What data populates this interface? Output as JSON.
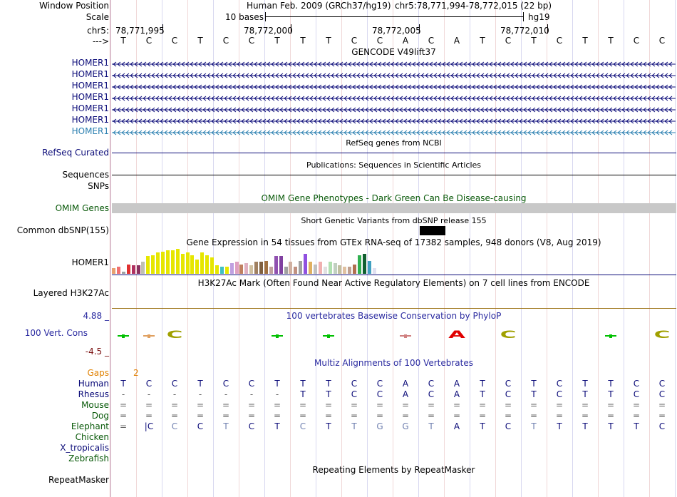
{
  "header": {
    "window_position_label": "Window Position",
    "assembly": "Human Feb. 2009 (GRCh37/hg19)",
    "position": "chr5:78,771,994-78,772,015 (22 bp)",
    "scale_label": "Scale",
    "scale_text": "10 bases",
    "scale_db": "hg19",
    "chrom_label": "chr5:",
    "ticks": [
      "78,771,995",
      "78,772,000",
      "78,772,005",
      "78,772,010"
    ],
    "strand_label": "--->"
  },
  "sequence": [
    "T",
    "C",
    "C",
    "T",
    "C",
    "C",
    "T",
    "T",
    "T",
    "C",
    "C",
    "A",
    "C",
    "A",
    "T",
    "C",
    "T",
    "C",
    "T",
    "T",
    "C",
    "C"
  ],
  "gencode": {
    "title": "GENCODE V49lift37",
    "genes": [
      "HOMER1",
      "HOMER1",
      "HOMER1",
      "HOMER1",
      "HOMER1",
      "HOMER1",
      "HOMER1"
    ],
    "gene_colors": [
      "#0a0a78",
      "#0a0a78",
      "#0a0a78",
      "#0a0a78",
      "#0a0a78",
      "#0a0a78",
      "#2a7fb0"
    ]
  },
  "refseq": {
    "title": "RefSeq genes from NCBI",
    "label": "RefSeq Curated"
  },
  "publications": {
    "title": "Publications: Sequences in Scientific Articles",
    "label": "Sequences"
  },
  "snps_label": "SNPs",
  "omim": {
    "title": "OMIM Gene Phenotypes - Dark Green Can Be Disease-causing",
    "label": "OMIM Genes"
  },
  "dbsnp": {
    "title": "Short Genetic Variants from dbSNP release 155",
    "label": "Common dbSNP(155)"
  },
  "gtex": {
    "title": "Gene Expression in 54 tissues from GTEx RNA-seq of 17382 samples, 948 donors (V8, Aug 2019)",
    "label": "HOMER1",
    "bars": [
      {
        "v": 0.25,
        "c": "#e8a070"
      },
      {
        "v": 0.3,
        "c": "#f07070"
      },
      {
        "v": 0.1,
        "c": "#a0a0a0"
      },
      {
        "v": 0.4,
        "c": "#e03030"
      },
      {
        "v": 0.35,
        "c": "#b03060"
      },
      {
        "v": 0.35,
        "c": "#8a3060"
      },
      {
        "v": 0.5,
        "c": "#c0c0b0"
      },
      {
        "v": 0.75,
        "c": "#e6e600"
      },
      {
        "v": 0.8,
        "c": "#e6e600"
      },
      {
        "v": 0.9,
        "c": "#e6e600"
      },
      {
        "v": 0.95,
        "c": "#e6e600"
      },
      {
        "v": 1.0,
        "c": "#e6e600"
      },
      {
        "v": 1.0,
        "c": "#e6e600"
      },
      {
        "v": 1.05,
        "c": "#e6e600"
      },
      {
        "v": 0.85,
        "c": "#e6e600"
      },
      {
        "v": 0.9,
        "c": "#e6e600"
      },
      {
        "v": 0.8,
        "c": "#e6e600"
      },
      {
        "v": 0.6,
        "c": "#e6e600"
      },
      {
        "v": 0.9,
        "c": "#e6e600"
      },
      {
        "v": 0.8,
        "c": "#e6e600"
      },
      {
        "v": 0.7,
        "c": "#e6e600"
      },
      {
        "v": 0.35,
        "c": "#e6e600"
      },
      {
        "v": 0.3,
        "c": "#40c0c0"
      },
      {
        "v": 0.3,
        "c": "#e6e600"
      },
      {
        "v": 0.45,
        "c": "#c0a0e0"
      },
      {
        "v": 0.5,
        "c": "#e0a0c0"
      },
      {
        "v": 0.4,
        "c": "#c08060"
      },
      {
        "v": 0.45,
        "c": "#e0b0c0"
      },
      {
        "v": 0.35,
        "c": "#d0c0a0"
      },
      {
        "v": 0.5,
        "c": "#a08060"
      },
      {
        "v": 0.5,
        "c": "#806040"
      },
      {
        "v": 0.55,
        "c": "#a07040"
      },
      {
        "v": 0.3,
        "c": "#c0a0a0"
      },
      {
        "v": 0.75,
        "c": "#9050b0"
      },
      {
        "v": 0.75,
        "c": "#8040a0"
      },
      {
        "v": 0.3,
        "c": "#a0a0a0"
      },
      {
        "v": 0.5,
        "c": "#d0b0a0"
      },
      {
        "v": 0.3,
        "c": "#c09080"
      },
      {
        "v": 0.55,
        "c": "#a0a0a0"
      },
      {
        "v": 0.85,
        "c": "#9050e0"
      },
      {
        "v": 0.5,
        "c": "#e0b060"
      },
      {
        "v": 0.4,
        "c": "#c0c0c0"
      },
      {
        "v": 0.5,
        "c": "#f0b0b0"
      },
      {
        "v": 0.3,
        "c": "#e0e0e0"
      },
      {
        "v": 0.5,
        "c": "#b0e0b0"
      },
      {
        "v": 0.45,
        "c": "#c0d0c0"
      },
      {
        "v": 0.35,
        "c": "#c0c0a0"
      },
      {
        "v": 0.3,
        "c": "#e0c0a0"
      },
      {
        "v": 0.3,
        "c": "#c0a090"
      },
      {
        "v": 0.4,
        "c": "#b07050"
      },
      {
        "v": 0.8,
        "c": "#30b050"
      },
      {
        "v": 0.85,
        "c": "#106030"
      },
      {
        "v": 0.55,
        "c": "#40a0c0"
      },
      {
        "v": 0.25,
        "c": "#e0e0f0"
      }
    ]
  },
  "h3k27ac": {
    "title": "H3K27Ac Mark (Often Found Near Active Regulatory Elements) on 7 cell lines from ENCODE",
    "label": "Layered H3K27Ac"
  },
  "phylop": {
    "title": "100 vertebrates Basewise Conservation by PhyloP",
    "label": "100 Vert. Cons",
    "ymax": "4.88 _",
    "ymin": "-4.5 _",
    "logos": [
      {
        "pos": 0,
        "letter": "",
        "color": "#00c000"
      },
      {
        "pos": 1,
        "letter": "",
        "color": "#e0a060"
      },
      {
        "pos": 2,
        "letter": "C",
        "color": "#a0a000"
      },
      {
        "pos": 6,
        "letter": "",
        "color": "#00c000"
      },
      {
        "pos": 8,
        "letter": "",
        "color": "#00c000"
      },
      {
        "pos": 11,
        "letter": "",
        "color": "#d08080"
      },
      {
        "pos": 13,
        "letter": "A",
        "color": "#e00000"
      },
      {
        "pos": 15,
        "letter": "C",
        "color": "#a0a000"
      },
      {
        "pos": 19,
        "letter": "",
        "color": "#00c000"
      },
      {
        "pos": 21,
        "letter": "C",
        "color": "#a0a000"
      }
    ]
  },
  "multiz": {
    "title": "Multiz Alignments of 100 Vertebrates",
    "gaps_label": "Gaps",
    "gaps_value": "2",
    "species": [
      {
        "name": "Human",
        "color": "#0a0a78",
        "bases": [
          "T",
          "C",
          "C",
          "T",
          "C",
          "C",
          "T",
          "T",
          "T",
          "C",
          "C",
          "A",
          "C",
          "A",
          "T",
          "C",
          "T",
          "C",
          "T",
          "T",
          "C",
          "C"
        ]
      },
      {
        "name": "Rhesus",
        "color": "#0a0a78",
        "bases": [
          "-",
          "-",
          "-",
          "-",
          "-",
          "-",
          "-",
          "T",
          "T",
          "C",
          "C",
          "A",
          "C",
          "A",
          "T",
          "C",
          "T",
          "C",
          "T",
          "T",
          "C",
          "C"
        ]
      },
      {
        "name": "Mouse",
        "color": "#0a5a0a",
        "bases": [
          "=",
          "=",
          "=",
          "=",
          "=",
          "=",
          "=",
          "=",
          "=",
          "=",
          "=",
          "=",
          "=",
          "=",
          "=",
          "=",
          "=",
          "=",
          "=",
          "=",
          "=",
          "="
        ]
      },
      {
        "name": "Dog",
        "color": "#0a5a0a",
        "bases": [
          "=",
          "=",
          "=",
          "=",
          "=",
          "=",
          "=",
          "=",
          "=",
          "=",
          "=",
          "=",
          "=",
          "=",
          "=",
          "=",
          "=",
          "=",
          "=",
          "=",
          "=",
          "="
        ]
      },
      {
        "name": "Elephant",
        "color": "#0a5a0a",
        "bases": [
          "=",
          "|C",
          "C",
          "C",
          "T",
          "C",
          "T",
          "C",
          "T",
          "T",
          "G",
          "G",
          "T",
          "A",
          "T",
          "C",
          "T",
          "T",
          "T",
          "T",
          "T",
          "C"
        ]
      },
      {
        "name": "Chicken",
        "color": "#0a5a0a",
        "bases": []
      },
      {
        "name": "X_tropicalis",
        "color": "#0a0a78",
        "bases": []
      },
      {
        "name": "Zebrafish",
        "color": "#0a5a0a",
        "bases": []
      }
    ],
    "elephant_light": [
      2,
      4,
      7,
      9,
      10,
      11,
      12,
      16
    ]
  },
  "repeatmasker": {
    "title": "Repeating Elements by RepeatMasker",
    "label": "RepeatMasker"
  }
}
